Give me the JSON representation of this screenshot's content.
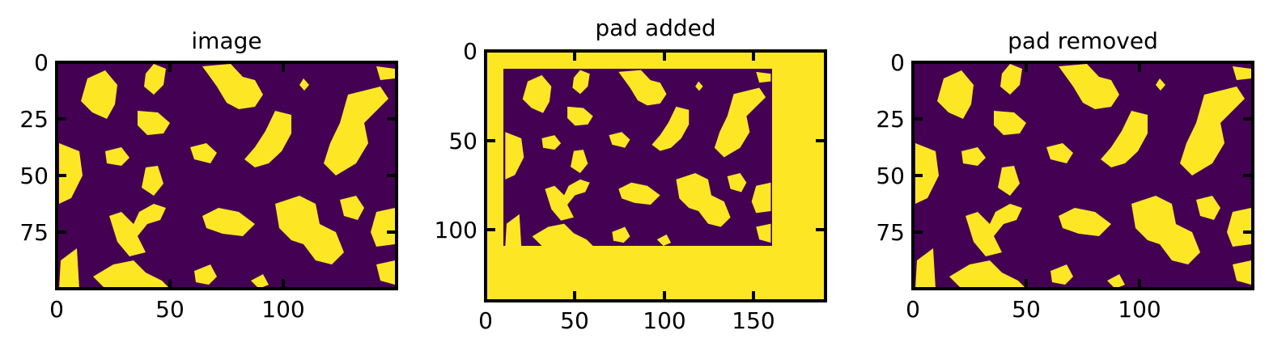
{
  "chart_data": [
    {
      "type": "heatmap",
      "title": "image",
      "xlim": [
        0,
        150
      ],
      "ylim": [
        100,
        0
      ],
      "x_ticks": [
        "0",
        "50",
        "100"
      ],
      "y_ticks": [
        "0",
        "25",
        "50",
        "75"
      ],
      "colormap": "viridis",
      "values": "binary",
      "colors": {
        "low": "#440154",
        "high": "#fde725"
      }
    },
    {
      "type": "heatmap",
      "title": "pad added",
      "xlim": [
        0,
        190
      ],
      "ylim": [
        140,
        0
      ],
      "x_ticks": [
        "0",
        "50",
        "100",
        "150"
      ],
      "y_ticks": [
        "0",
        "50",
        "100"
      ],
      "colormap": "viridis",
      "values": "binary",
      "colors": {
        "low": "#440154",
        "high": "#fde725"
      }
    },
    {
      "type": "heatmap",
      "title": "pad removed",
      "xlim": [
        0,
        150
      ],
      "ylim": [
        100,
        0
      ],
      "x_ticks": [
        "0",
        "50",
        "100"
      ],
      "y_ticks": [
        "0",
        "25",
        "50",
        "75"
      ],
      "colormap": "viridis",
      "values": "binary",
      "colors": {
        "low": "#440154",
        "high": "#fde725"
      }
    }
  ]
}
